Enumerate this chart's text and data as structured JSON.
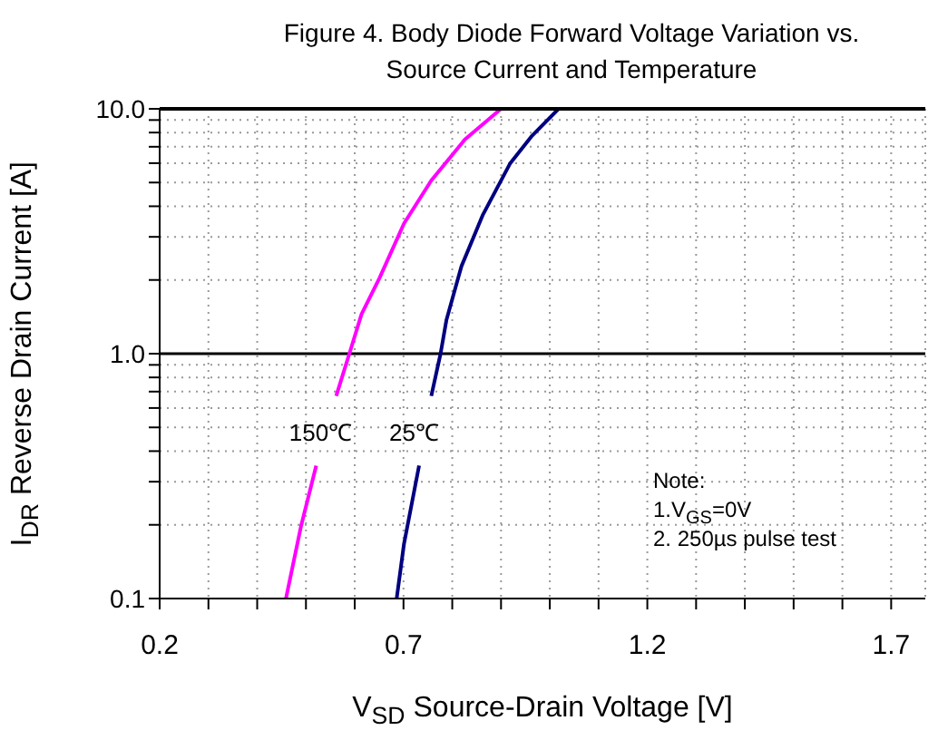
{
  "chart_data": {
    "type": "line",
    "title": "Figure 4. Body Diode Forward Voltage Variation vs. Source Current and Temperature",
    "xlabel": "V$_{SD}$ Source-Drain Voltage [V]",
    "ylabel": "I$_{DR}$ Reverse Drain Current [A]",
    "annotations": [
      "Note:",
      "1.V$_{GS}$=0V",
      "2. 250µs pulse test"
    ],
    "series": [
      {
        "name": "150℃",
        "color": "#ff00ff",
        "x": [
          0.459,
          0.49,
          0.521,
          0.54,
          0.562,
          0.589,
          0.614,
          0.651,
          0.701,
          0.757,
          0.826,
          0.9
        ],
        "values": [
          0.1,
          0.198,
          0.349,
          null,
          0.672,
          1.0,
          1.45,
          2.04,
          3.4,
          5.1,
          7.5,
          10
        ]
      },
      {
        "name": "25℃",
        "color": "#000080",
        "x": [
          0.686,
          0.701,
          0.732,
          0.745,
          0.757,
          0.776,
          0.788,
          0.819,
          0.863,
          0.919,
          0.962,
          1.018
        ],
        "values": [
          0.1,
          0.167,
          0.349,
          null,
          0.672,
          1.0,
          1.37,
          2.28,
          3.7,
          6.0,
          7.7,
          10
        ]
      }
    ],
    "xlim": [
      0.2,
      1.77
    ],
    "xticks": [
      0.2,
      {
        "value": 0.3,
        "label": null
      },
      {
        "value": 0.4,
        "label": null
      },
      {
        "value": 0.5,
        "label": null
      },
      {
        "value": 0.6,
        "label": null
      },
      0.7,
      {
        "value": 0.8,
        "label": null
      },
      {
        "value": 0.9,
        "label": null
      },
      {
        "value": 1.0,
        "label": null
      },
      {
        "value": 1.1,
        "label": null
      },
      1.2,
      {
        "value": 1.3,
        "label": null
      },
      {
        "value": 1.4,
        "label": null
      },
      {
        "value": 1.5,
        "label": null
      },
      {
        "value": 1.6,
        "label": null
      },
      1.7
    ],
    "ylim": [
      0.1,
      10
    ],
    "yticks": [
      0.1,
      {
        "value": 0.2,
        "label": null
      },
      {
        "value": 0.3,
        "label": null
      },
      {
        "value": 0.4,
        "label": null
      },
      {
        "value": 0.5,
        "label": null
      },
      {
        "value": 0.6,
        "label": null
      },
      {
        "value": 0.7,
        "label": null
      },
      {
        "value": 0.8,
        "label": null
      },
      {
        "value": 0.9,
        "label": null
      },
      {
        "value": 1,
        "label": "1.0"
      },
      {
        "value": 2,
        "label": null
      },
      {
        "value": 3,
        "label": null
      },
      {
        "value": 4,
        "label": null
      },
      {
        "value": 5,
        "label": null
      },
      {
        "value": 6,
        "label": null
      },
      {
        "value": 7,
        "label": null
      },
      {
        "value": 8,
        "label": null
      },
      {
        "value": 9,
        "label": null
      },
      {
        "value": 10,
        "label": "10.0"
      }
    ],
    "log": "y",
    "grid": true,
    "ref_lines": [
      {
        "axis": "y",
        "value": 1,
        "color": "#000000"
      }
    ],
    "marker": "none",
    "line_style": "solid"
  }
}
